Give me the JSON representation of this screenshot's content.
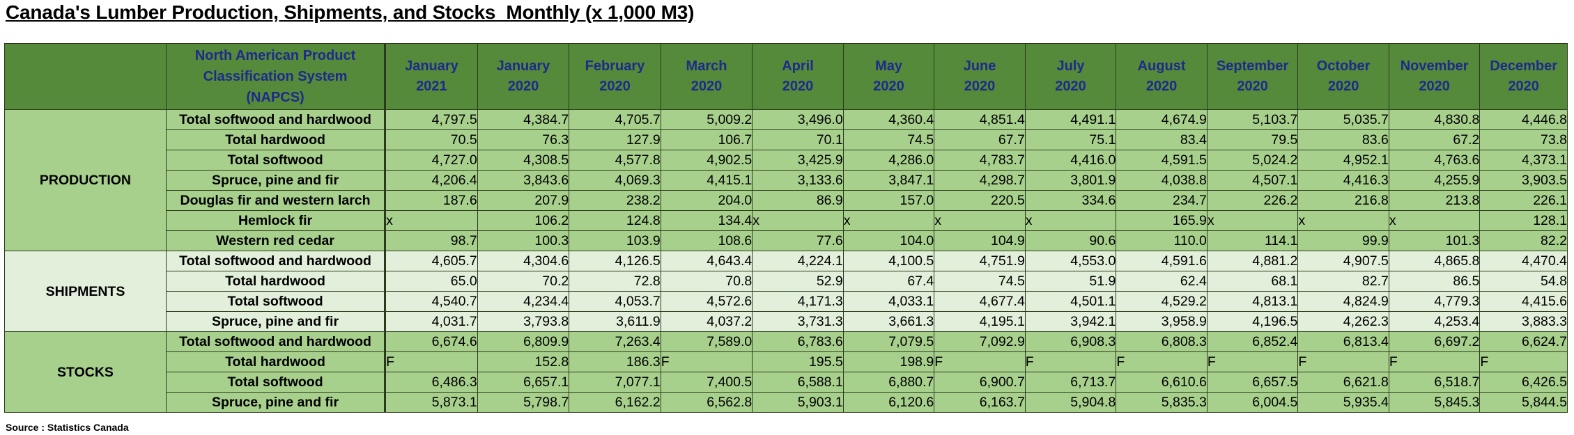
{
  "title": "Canada's Lumber Production, Shipments, and Stocks  Monthly (x 1,000 M3)",
  "source": "Source : Statistics Canada",
  "chart_data": {
    "type": "table",
    "title": "Canada's Lumber Production, Shipments, and Stocks  Monthly (x 1,000 M3)",
    "header_label": [
      "North American Product",
      "Classification System",
      "(NAPCS)"
    ],
    "columns": [
      [
        "January",
        "2021"
      ],
      [
        "January",
        "2020"
      ],
      [
        "February",
        "2020"
      ],
      [
        "March",
        "2020"
      ],
      [
        "April",
        "2020"
      ],
      [
        "May",
        "2020"
      ],
      [
        "June",
        "2020"
      ],
      [
        "July",
        "2020"
      ],
      [
        "August",
        "2020"
      ],
      [
        "September",
        "2020"
      ],
      [
        "October",
        "2020"
      ],
      [
        "November",
        "2020"
      ],
      [
        "December",
        "2020"
      ]
    ],
    "sections": [
      {
        "name": "PRODUCTION",
        "rows": [
          {
            "label": "Total softwood and hardwood",
            "values": [
              "4,797.5",
              "4,384.7",
              "4,705.7",
              "5,009.2",
              "3,496.0",
              "4,360.4",
              "4,851.4",
              "4,491.1",
              "4,674.9",
              "5,103.7",
              "5,035.7",
              "4,830.8",
              "4,446.8"
            ]
          },
          {
            "label": "Total hardwood",
            "values": [
              "70.5",
              "76.3",
              "127.9",
              "106.7",
              "70.1",
              "74.5",
              "67.7",
              "75.1",
              "83.4",
              "79.5",
              "83.6",
              "67.2",
              "73.8"
            ]
          },
          {
            "label": "Total softwood",
            "values": [
              "4,727.0",
              "4,308.5",
              "4,577.8",
              "4,902.5",
              "3,425.9",
              "4,286.0",
              "4,783.7",
              "4,416.0",
              "4,591.5",
              "5,024.2",
              "4,952.1",
              "4,763.6",
              "4,373.1"
            ]
          },
          {
            "label": "Spruce, pine and fir",
            "values": [
              "4,206.4",
              "3,843.6",
              "4,069.3",
              "4,415.1",
              "3,133.6",
              "3,847.1",
              "4,298.7",
              "3,801.9",
              "4,038.8",
              "4,507.1",
              "4,416.3",
              "4,255.9",
              "3,903.5"
            ]
          },
          {
            "label": "Douglas fir and western larch",
            "values": [
              "187.6",
              "207.9",
              "238.2",
              "204.0",
              "86.9",
              "157.0",
              "220.5",
              "334.6",
              "234.7",
              "226.2",
              "216.8",
              "213.8",
              "226.1"
            ]
          },
          {
            "label": "Hemlock fir",
            "values": [
              "x",
              "106.2",
              "124.8",
              "134.4",
              "x",
              "x",
              "x",
              "x",
              "165.9",
              "x",
              "x",
              "x",
              "128.1"
            ]
          },
          {
            "label": "Western red cedar",
            "values": [
              "98.7",
              "100.3",
              "103.9",
              "108.6",
              "77.6",
              "104.0",
              "104.9",
              "90.6",
              "110.0",
              "114.1",
              "99.9",
              "101.3",
              "82.2"
            ]
          }
        ]
      },
      {
        "name": "SHIPMENTS",
        "rows": [
          {
            "label": "Total softwood and hardwood",
            "values": [
              "4,605.7",
              "4,304.6",
              "4,126.5",
              "4,643.4",
              "4,224.1",
              "4,100.5",
              "4,751.9",
              "4,553.0",
              "4,591.6",
              "4,881.2",
              "4,907.5",
              "4,865.8",
              "4,470.4"
            ]
          },
          {
            "label": "Total hardwood",
            "values": [
              "65.0",
              "70.2",
              "72.8",
              "70.8",
              "52.9",
              "67.4",
              "74.5",
              "51.9",
              "62.4",
              "68.1",
              "82.7",
              "86.5",
              "54.8"
            ]
          },
          {
            "label": "Total softwood",
            "values": [
              "4,540.7",
              "4,234.4",
              "4,053.7",
              "4,572.6",
              "4,171.3",
              "4,033.1",
              "4,677.4",
              "4,501.1",
              "4,529.2",
              "4,813.1",
              "4,824.9",
              "4,779.3",
              "4,415.6"
            ]
          },
          {
            "label": "Spruce, pine and fir",
            "values": [
              "4,031.7",
              "3,793.8",
              "3,611.9",
              "4,037.2",
              "3,731.3",
              "3,661.3",
              "4,195.1",
              "3,942.1",
              "3,958.9",
              "4,196.5",
              "4,262.3",
              "4,253.4",
              "3,883.3"
            ]
          }
        ]
      },
      {
        "name": "STOCKS",
        "rows": [
          {
            "label": "Total softwood and hardwood",
            "values": [
              "6,674.6",
              "6,809.9",
              "7,263.4",
              "7,589.0",
              "6,783.6",
              "7,079.5",
              "7,092.9",
              "6,908.3",
              "6,808.3",
              "6,852.4",
              "6,813.4",
              "6,697.2",
              "6,624.7"
            ]
          },
          {
            "label": "Total hardwood",
            "values": [
              "F",
              "152.8",
              "186.3",
              "F",
              "195.5",
              "198.9",
              "F",
              "F",
              "F",
              "F",
              "F",
              "F",
              "F"
            ]
          },
          {
            "label": "Total softwood",
            "values": [
              "6,486.3",
              "6,657.1",
              "7,077.1",
              "7,400.5",
              "6,588.1",
              "6,880.7",
              "6,900.7",
              "6,713.7",
              "6,610.6",
              "6,657.5",
              "6,621.8",
              "6,518.7",
              "6,426.5"
            ]
          },
          {
            "label": "Spruce, pine and fir",
            "values": [
              "5,873.1",
              "5,798.7",
              "6,162.2",
              "6,562.8",
              "5,903.1",
              "6,120.6",
              "6,163.7",
              "5,904.8",
              "5,835.3",
              "6,004.5",
              "5,935.4",
              "5,845.3",
              "5,844.5"
            ]
          }
        ]
      }
    ]
  }
}
